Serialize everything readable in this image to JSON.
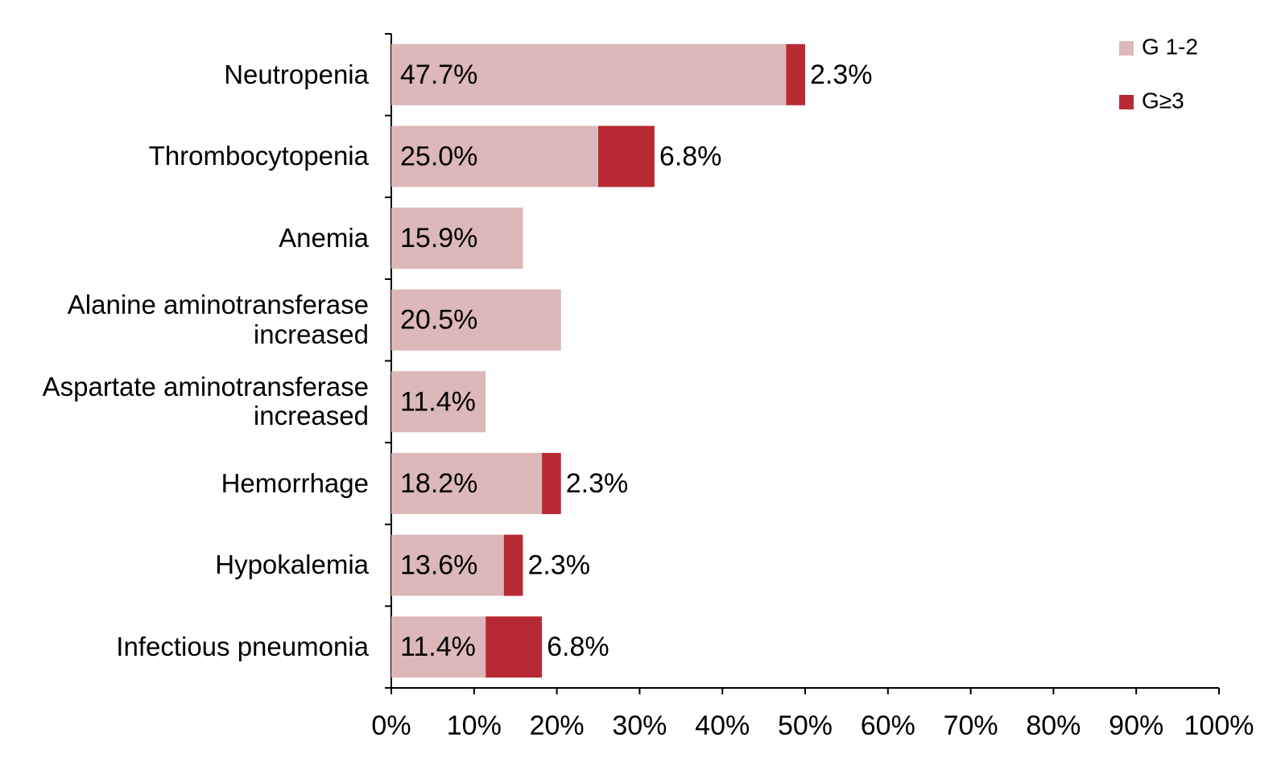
{
  "chart_data": {
    "type": "stacked-bar-horizontal",
    "categories": [
      "Neutropenia",
      "Thrombocytopenia",
      "Anemia",
      "Alanine aminotransferase increased",
      "Aspartate aminotransferase increased",
      "Hemorrhage",
      "Hypokalemia",
      "Infectious pneumonia"
    ],
    "series": [
      {
        "name": "G 1-2",
        "color": "#dcb8b8",
        "values": [
          47.7,
          25.0,
          15.9,
          20.5,
          11.4,
          18.2,
          13.6,
          11.4
        ],
        "value_labels": [
          "47.7%",
          "25.0%",
          "15.9%",
          "20.5%",
          "11.4%",
          "18.2%",
          "13.6%",
          "11.4%"
        ]
      },
      {
        "name": "G≥3",
        "color": "#b82a33",
        "values": [
          2.3,
          6.8,
          null,
          null,
          null,
          2.3,
          2.3,
          6.8
        ],
        "value_labels": [
          "2.3%",
          "6.8%",
          null,
          null,
          null,
          "2.3%",
          "2.3%",
          "6.8%"
        ]
      }
    ],
    "xlim": [
      0,
      100
    ],
    "xticks": [
      {
        "value": 0,
        "label": "0%"
      },
      {
        "value": 10,
        "label": "10%"
      },
      {
        "value": 20,
        "label": "20%"
      },
      {
        "value": 30,
        "label": "30%"
      },
      {
        "value": 40,
        "label": "40%"
      },
      {
        "value": 50,
        "label": "50%"
      },
      {
        "value": 60,
        "label": "60%"
      },
      {
        "value": 70,
        "label": "70%"
      },
      {
        "value": 80,
        "label": "80%"
      },
      {
        "value": 90,
        "label": "90%"
      },
      {
        "value": 100,
        "label": "100%"
      }
    ],
    "legend": "top-right",
    "grid": false
  }
}
